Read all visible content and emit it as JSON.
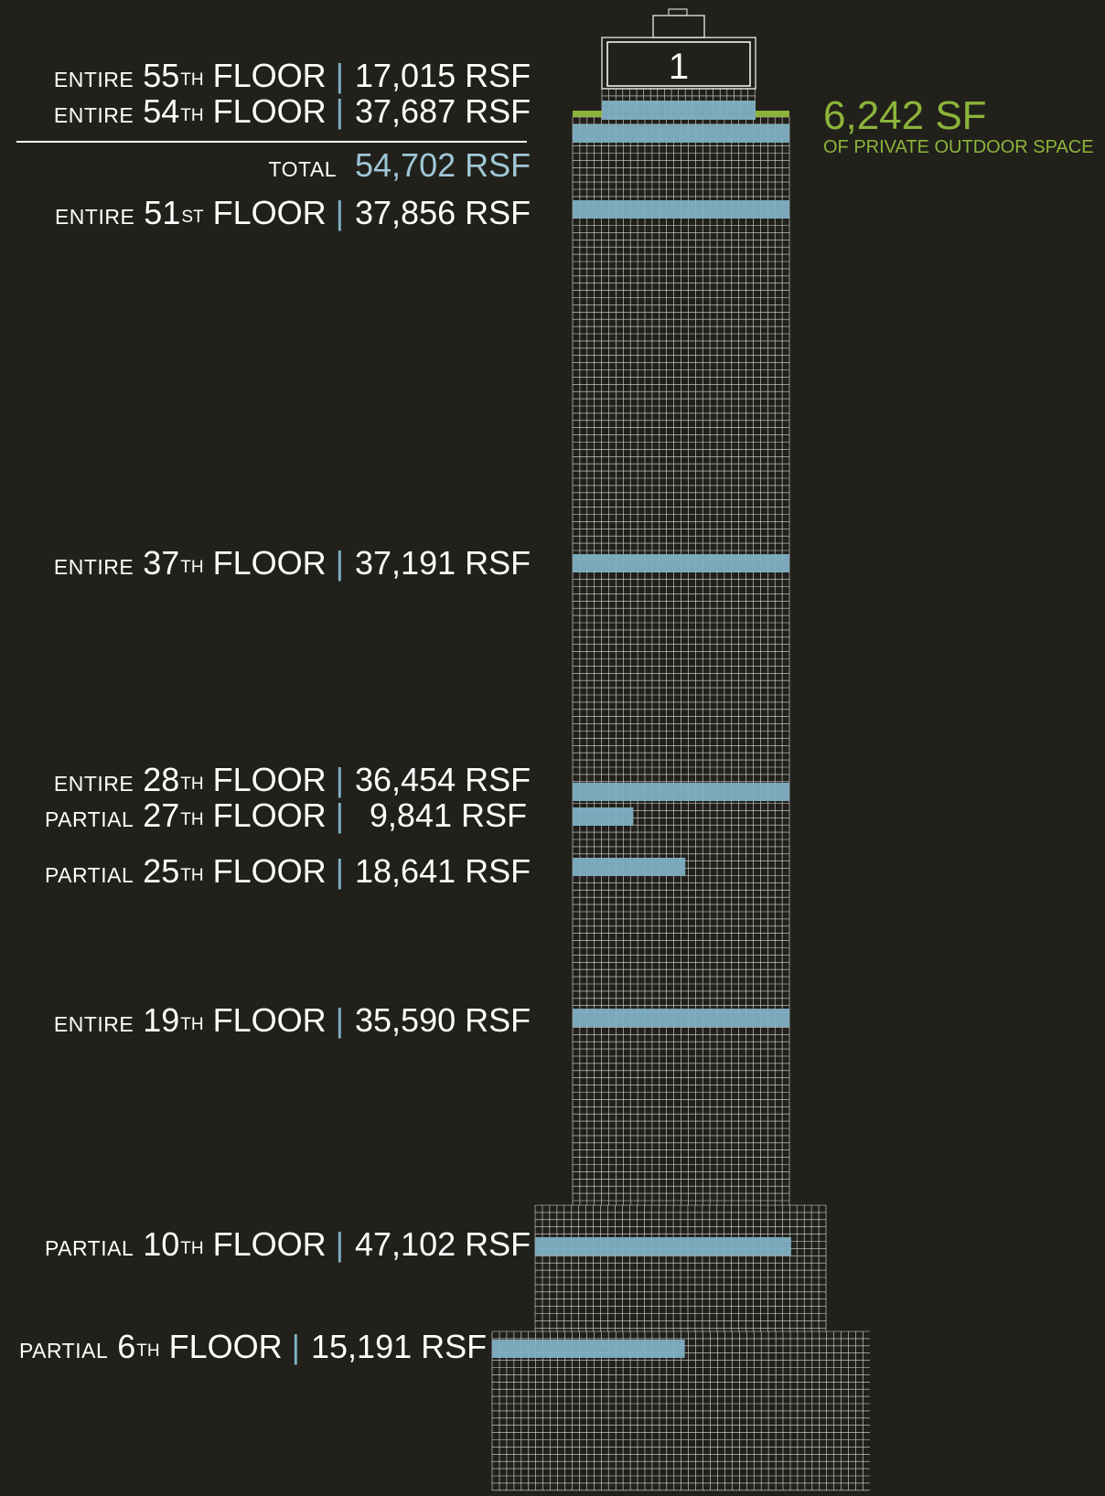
{
  "building": {
    "roof_sign": "1",
    "outdoor_space": {
      "value": "6,242 SF",
      "label": "OF PRIVATE OUTDOOR SPACE"
    },
    "colors": {
      "background": "#21201b",
      "grid": "#ffffff",
      "highlight": "#7fb0c3",
      "terrace": "#8cb43a",
      "total_value": "#9fc7d6"
    }
  },
  "floors": [
    {
      "id": "f55",
      "qualifier": "ENTIRE",
      "number": "55",
      "suffix": "TH",
      "word": "FLOOR",
      "sep": "|",
      "rsf": "17,015 RSF",
      "area_share": 1.0
    },
    {
      "id": "f54",
      "qualifier": "ENTIRE",
      "number": "54",
      "suffix": "TH",
      "word": "FLOOR",
      "sep": "|",
      "rsf": "37,687 RSF",
      "area_share": 1.0
    },
    {
      "id": "f51",
      "qualifier": "ENTIRE",
      "number": "51",
      "suffix": "ST",
      "word": "FLOOR",
      "sep": "|",
      "rsf": "37,856 RSF",
      "area_share": 1.0
    },
    {
      "id": "f37",
      "qualifier": "ENTIRE",
      "number": "37",
      "suffix": "TH",
      "word": "FLOOR",
      "sep": "|",
      "rsf": "37,191 RSF",
      "area_share": 1.0
    },
    {
      "id": "f28",
      "qualifier": "ENTIRE",
      "number": "28",
      "suffix": "TH",
      "word": "FLOOR",
      "sep": "|",
      "rsf": "36,454 RSF",
      "area_share": 1.0
    },
    {
      "id": "f27",
      "qualifier": "PARTIAL",
      "number": "27",
      "suffix": "TH",
      "word": "FLOOR",
      "sep": "|",
      "rsf": "9,841 RSF",
      "area_share": 0.28
    },
    {
      "id": "f25",
      "qualifier": "PARTIAL",
      "number": "25",
      "suffix": "TH",
      "word": "FLOOR",
      "sep": "|",
      "rsf": "18,641 RSF",
      "area_share": 0.52
    },
    {
      "id": "f19",
      "qualifier": "ENTIRE",
      "number": "19",
      "suffix": "TH",
      "word": "FLOOR",
      "sep": "|",
      "rsf": "35,590 RSF",
      "area_share": 1.0
    },
    {
      "id": "f10",
      "qualifier": "PARTIAL",
      "number": "10",
      "suffix": "TH",
      "word": "FLOOR",
      "sep": "|",
      "rsf": "47,102 RSF",
      "area_share": 0.88
    },
    {
      "id": "f6",
      "qualifier": "PARTIAL",
      "number": "6",
      "suffix": "TH",
      "word": "FLOOR",
      "sep": "|",
      "rsf": "15,191 RSF",
      "area_share": 0.51
    }
  ],
  "total": {
    "label": "TOTAL",
    "value": "54,702 RSF"
  }
}
